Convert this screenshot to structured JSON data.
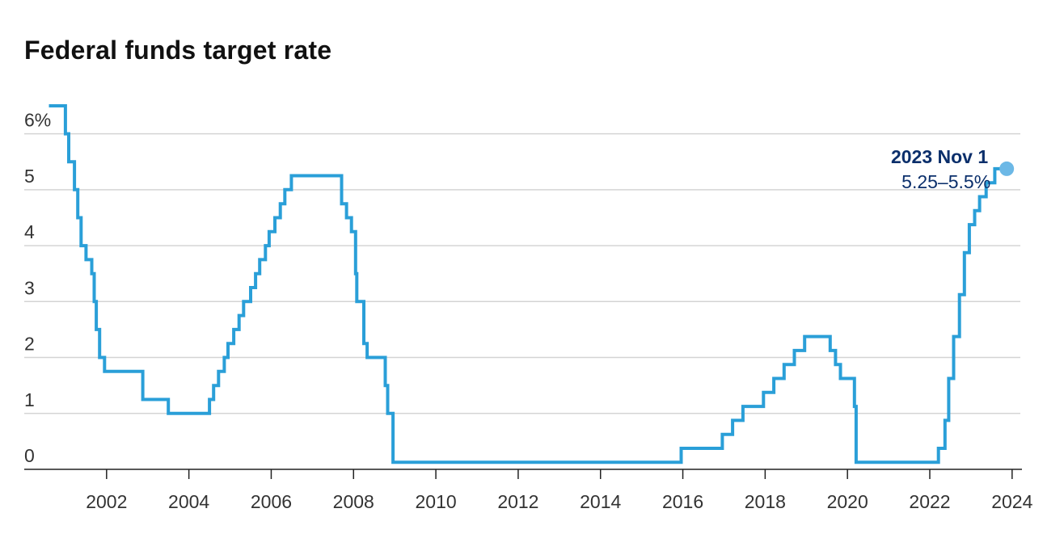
{
  "chart_data": {
    "type": "line",
    "step": true,
    "title": "Federal funds target rate",
    "xlabel": "",
    "ylabel": "",
    "ylim": [
      0,
      6.5
    ],
    "xlim": [
      2000,
      2024.2
    ],
    "y_ticks": [
      {
        "value": 0,
        "label": "0"
      },
      {
        "value": 1,
        "label": "1"
      },
      {
        "value": 2,
        "label": "2"
      },
      {
        "value": 3,
        "label": "3"
      },
      {
        "value": 4,
        "label": "4"
      },
      {
        "value": 5,
        "label": "5"
      },
      {
        "value": 6,
        "label": "6%"
      }
    ],
    "x_ticks": [
      {
        "value": 2002,
        "label": "2002"
      },
      {
        "value": 2004,
        "label": "2004"
      },
      {
        "value": 2006,
        "label": "2006"
      },
      {
        "value": 2008,
        "label": "2008"
      },
      {
        "value": 2010,
        "label": "2010"
      },
      {
        "value": 2012,
        "label": "2012"
      },
      {
        "value": 2014,
        "label": "2014"
      },
      {
        "value": 2016,
        "label": "2016"
      },
      {
        "value": 2018,
        "label": "2018"
      },
      {
        "value": 2020,
        "label": "2020"
      },
      {
        "value": 2022,
        "label": "2022"
      },
      {
        "value": 2024,
        "label": "2024"
      }
    ],
    "grid": true,
    "colors": {
      "line": "#2a9fd8",
      "marker": "#6cb8e6",
      "annotation": "#0b2f6b",
      "grid": "#d4d4d4",
      "axis": "#222222"
    },
    "series": [
      {
        "points": [
          [
            2000.6,
            6.5
          ],
          [
            2001.0,
            6.0
          ],
          [
            2001.08,
            5.5
          ],
          [
            2001.22,
            5.0
          ],
          [
            2001.3,
            4.5
          ],
          [
            2001.38,
            4.0
          ],
          [
            2001.5,
            3.75
          ],
          [
            2001.64,
            3.5
          ],
          [
            2001.7,
            3.0
          ],
          [
            2001.75,
            2.5
          ],
          [
            2001.83,
            2.0
          ],
          [
            2001.95,
            1.75
          ],
          [
            2002.88,
            1.25
          ],
          [
            2003.5,
            1.0
          ],
          [
            2004.5,
            1.25
          ],
          [
            2004.6,
            1.5
          ],
          [
            2004.72,
            1.75
          ],
          [
            2004.86,
            2.0
          ],
          [
            2004.95,
            2.25
          ],
          [
            2005.09,
            2.5
          ],
          [
            2005.22,
            2.75
          ],
          [
            2005.33,
            3.0
          ],
          [
            2005.5,
            3.25
          ],
          [
            2005.62,
            3.5
          ],
          [
            2005.72,
            3.75
          ],
          [
            2005.86,
            4.0
          ],
          [
            2005.95,
            4.25
          ],
          [
            2006.09,
            4.5
          ],
          [
            2006.22,
            4.75
          ],
          [
            2006.33,
            5.0
          ],
          [
            2006.49,
            5.25
          ],
          [
            2007.71,
            4.75
          ],
          [
            2007.83,
            4.5
          ],
          [
            2007.95,
            4.25
          ],
          [
            2008.05,
            3.5
          ],
          [
            2008.08,
            3.0
          ],
          [
            2008.25,
            2.25
          ],
          [
            2008.33,
            2.0
          ],
          [
            2008.77,
            1.5
          ],
          [
            2008.83,
            1.0
          ],
          [
            2008.96,
            0.125
          ],
          [
            2015.96,
            0.375
          ],
          [
            2016.96,
            0.625
          ],
          [
            2017.21,
            0.875
          ],
          [
            2017.46,
            1.125
          ],
          [
            2017.96,
            1.375
          ],
          [
            2018.21,
            1.625
          ],
          [
            2018.46,
            1.875
          ],
          [
            2018.71,
            2.125
          ],
          [
            2018.96,
            2.375
          ],
          [
            2019.58,
            2.125
          ],
          [
            2019.71,
            1.875
          ],
          [
            2019.83,
            1.625
          ],
          [
            2020.17,
            1.125
          ],
          [
            2020.21,
            0.125
          ],
          [
            2022.21,
            0.375
          ],
          [
            2022.37,
            0.875
          ],
          [
            2022.46,
            1.625
          ],
          [
            2022.58,
            2.375
          ],
          [
            2022.72,
            3.125
          ],
          [
            2022.84,
            3.875
          ],
          [
            2022.96,
            4.375
          ],
          [
            2023.09,
            4.625
          ],
          [
            2023.21,
            4.875
          ],
          [
            2023.37,
            5.125
          ],
          [
            2023.58,
            5.375
          ],
          [
            2023.83,
            5.375
          ]
        ]
      }
    ],
    "annotation": {
      "date": "2023 Nov 1",
      "value": "5.25–5.5%",
      "x": 2023.83,
      "y": 5.375
    }
  }
}
